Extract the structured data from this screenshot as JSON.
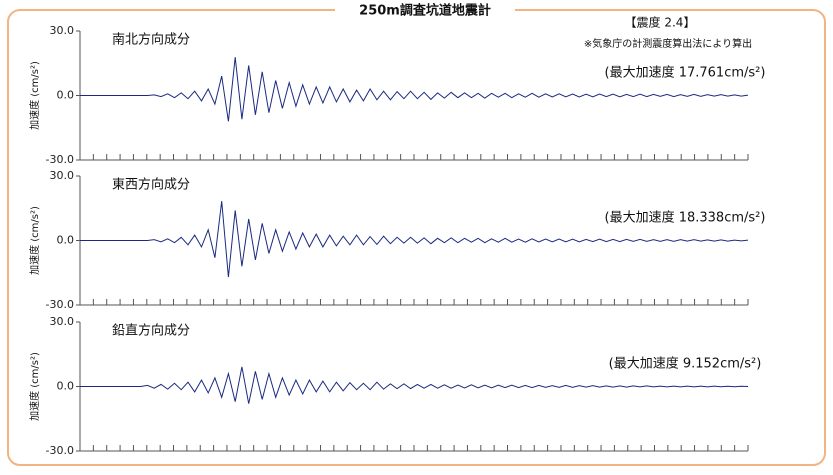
{
  "header": {
    "title": "250m調査坑道地震計",
    "intensity": "【震度 2.4】",
    "note": "※気象庁の計測震度算出法により算出"
  },
  "chart_data": [
    {
      "type": "line",
      "title": "南北方向成分",
      "annotation": "(最大加速度 17.761cm/s²)",
      "ylabel": "加速度 (cm/s²)",
      "ylim": [
        -30,
        30
      ],
      "yticks": [
        {
          "value": -30,
          "label": "-30.0"
        },
        {
          "value": 0,
          "label": "0.0"
        },
        {
          "value": 30,
          "label": "30.0"
        }
      ],
      "series": [
        {
          "color": "#1a2a80",
          "values": [
            0,
            0,
            0,
            0,
            0,
            0,
            0,
            0,
            0,
            0,
            0,
            0.3,
            -0.5,
            0.8,
            -1,
            1.2,
            -1.5,
            2,
            -2.5,
            3,
            -4,
            9,
            -12,
            17.8,
            -11,
            14,
            -9,
            11,
            -8,
            7,
            -6,
            6,
            -5,
            5,
            -4,
            4,
            -3.5,
            4,
            -3,
            3,
            -3,
            2.5,
            -2.5,
            3,
            -2,
            2,
            -2,
            1.8,
            -1.5,
            2,
            -1.5,
            1.5,
            -1.8,
            1.2,
            -1.2,
            1.5,
            -1,
            1.2,
            -1,
            1,
            -1.2,
            1,
            -0.8,
            1,
            -1,
            0.8,
            -0.8,
            1,
            -0.8,
            0.8,
            -0.7,
            0.8,
            -0.6,
            0.7,
            -0.7,
            0.6,
            -0.6,
            0.7,
            -0.5,
            0.6,
            -0.6,
            0.5,
            -0.5,
            0.6,
            -0.5,
            0.5,
            -0.4,
            0.5,
            -0.5,
            0.4,
            -0.4,
            0.5,
            -0.4,
            0.4,
            -0.3,
            0.4,
            -0.3,
            0.3,
            -0.3,
            0.2
          ]
        }
      ]
    },
    {
      "type": "line",
      "title": "東西方向成分",
      "annotation": "(最大加速度 18.338cm/s²)",
      "ylabel": "加速度 (cm/s²)",
      "ylim": [
        -30,
        30
      ],
      "yticks": [
        {
          "value": -30,
          "label": "-30.0"
        },
        {
          "value": 0,
          "label": "0.0"
        },
        {
          "value": 30,
          "label": "30.0"
        }
      ],
      "series": [
        {
          "color": "#1a2a80",
          "values": [
            0,
            0,
            0,
            0,
            0,
            0,
            0,
            0,
            0,
            0,
            0,
            0.4,
            -0.6,
            0.8,
            -1,
            1.5,
            -2,
            2.5,
            -3,
            5,
            -8,
            18.3,
            -17,
            14,
            -12,
            10,
            -9,
            8,
            -6,
            5,
            -5,
            4,
            -4,
            3.5,
            -3,
            3,
            -3,
            2.5,
            -2.5,
            2,
            -2,
            2.5,
            -2,
            1.8,
            -1.8,
            2,
            -1.5,
            1.5,
            -1.2,
            1.5,
            -1.2,
            1.2,
            -1.5,
            1,
            -1,
            1.2,
            -1,
            1,
            -0.8,
            1,
            -1,
            0.8,
            -0.8,
            1,
            -0.8,
            0.7,
            -0.8,
            0.8,
            -0.7,
            0.7,
            -0.6,
            0.7,
            -0.6,
            0.6,
            -0.6,
            0.5,
            -0.5,
            0.6,
            -0.5,
            0.5,
            -0.5,
            0.5,
            -0.4,
            0.5,
            -0.4,
            0.4,
            -0.4,
            0.4,
            -0.4,
            0.4,
            -0.3,
            0.4,
            -0.3,
            0.3,
            -0.3,
            0.3,
            -0.3,
            0.2,
            -0.2,
            0.2
          ]
        }
      ]
    },
    {
      "type": "line",
      "title": "鉛直方向成分",
      "annotation": "(最大加速度 9.152cm/s²)",
      "ylabel": "加速度 (cm/s²)",
      "ylim": [
        -30,
        30
      ],
      "yticks": [
        {
          "value": -30,
          "label": "-30.0"
        },
        {
          "value": 0,
          "label": "0.0"
        },
        {
          "value": 30,
          "label": "30.0"
        }
      ],
      "series": [
        {
          "color": "#1a2a80",
          "values": [
            0,
            0,
            0,
            0,
            0,
            0,
            0,
            0,
            0,
            0,
            0.5,
            -0.8,
            1,
            -1.2,
            1.5,
            -1.5,
            2,
            -2.5,
            3,
            -3,
            4,
            -5,
            6,
            -7,
            9.15,
            -8,
            7,
            -6,
            6,
            -5,
            4,
            -4,
            3,
            -3.5,
            3,
            -2.5,
            2.5,
            -2.5,
            2,
            -2,
            1.8,
            -1.5,
            1.5,
            -1.5,
            2,
            -1.2,
            1.2,
            -1,
            1.2,
            -1,
            1,
            -0.8,
            1,
            -0.8,
            0.8,
            -0.8,
            0.7,
            -0.7,
            0.8,
            -0.6,
            0.6,
            -0.6,
            0.6,
            -0.5,
            0.6,
            -0.5,
            0.5,
            -0.5,
            0.5,
            -0.4,
            0.4,
            -0.4,
            0.5,
            -0.4,
            0.4,
            -0.3,
            0.4,
            -0.3,
            0.3,
            -0.3,
            0.3,
            -0.3,
            0.3,
            -0.2,
            0.3,
            -0.2,
            0.2,
            -0.2,
            0.2,
            -0.2,
            0.2,
            -0.2,
            0.2,
            -0.2,
            0.2,
            -0.1,
            0.1,
            -0.1,
            0.1,
            0
          ]
        }
      ]
    }
  ]
}
